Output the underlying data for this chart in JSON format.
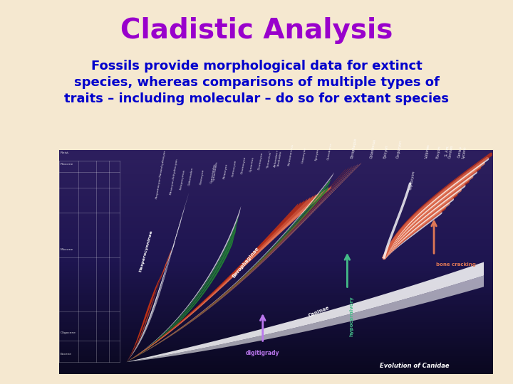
{
  "title": "Cladistic Analysis",
  "title_color": "#9900CC",
  "title_fontsize": 28,
  "subtitle_line1": "Fossils provide morphological data for extinct",
  "subtitle_line2": "species, whereas comparisons of multiple types of",
  "subtitle_line3": "traits – including molecular – do so for extant species",
  "subtitle_color": "#0000CC",
  "subtitle_fontsize": 13,
  "background_color": "#F5E8D0",
  "diagram_bg": "#1a1035",
  "diagram_bg_top": "#2d1f5e",
  "white_color": "#ffffff",
  "red_color": "#cc3311",
  "green_color": "#228833",
  "salmon_color": "#dd7755",
  "purple_arrow": "#bb77ee",
  "green_arrow": "#44bb88"
}
